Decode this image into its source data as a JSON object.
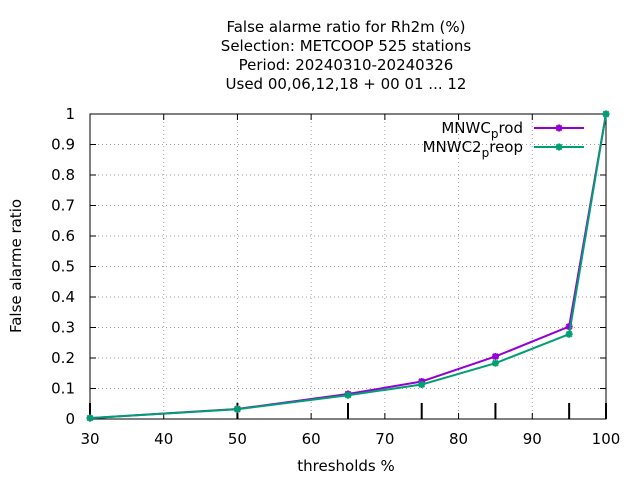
{
  "chart_data": {
    "type": "line",
    "title_lines": [
      "False alarme ratio  for Rh2m (%)",
      "Selection: METCOOP    525 stations",
      "Period: 20240310-20240326",
      "Used  00,06,12,18 + 00 01 ... 12"
    ],
    "xlabel": "thresholds %",
    "ylabel": "False alarme ratio",
    "xlim": [
      30,
      100
    ],
    "ylim": [
      0,
      1
    ],
    "x_ticks": [
      "30",
      "40",
      "50",
      "60",
      "70",
      "80",
      "90",
      "100"
    ],
    "y_ticks": [
      "0",
      "0.1",
      "0.2",
      "0.3",
      "0.4",
      "0.5",
      "0.6",
      "0.7",
      "0.8",
      "0.9",
      "1"
    ],
    "grid": true,
    "legend_position": "top-right",
    "x": [
      30,
      50,
      65,
      75,
      85,
      95,
      100
    ],
    "series": [
      {
        "name_main": "MNWC",
        "name_sub": "p",
        "name_tail": "rod",
        "color": "#9400d3",
        "values": [
          0.003,
          0.033,
          0.082,
          0.123,
          0.205,
          0.303,
          1.0
        ]
      },
      {
        "name_main": "MNWC2",
        "name_sub": "p",
        "name_tail": "reop",
        "color": "#009e73",
        "values": [
          0.003,
          0.032,
          0.078,
          0.113,
          0.183,
          0.278,
          1.0
        ]
      }
    ]
  }
}
